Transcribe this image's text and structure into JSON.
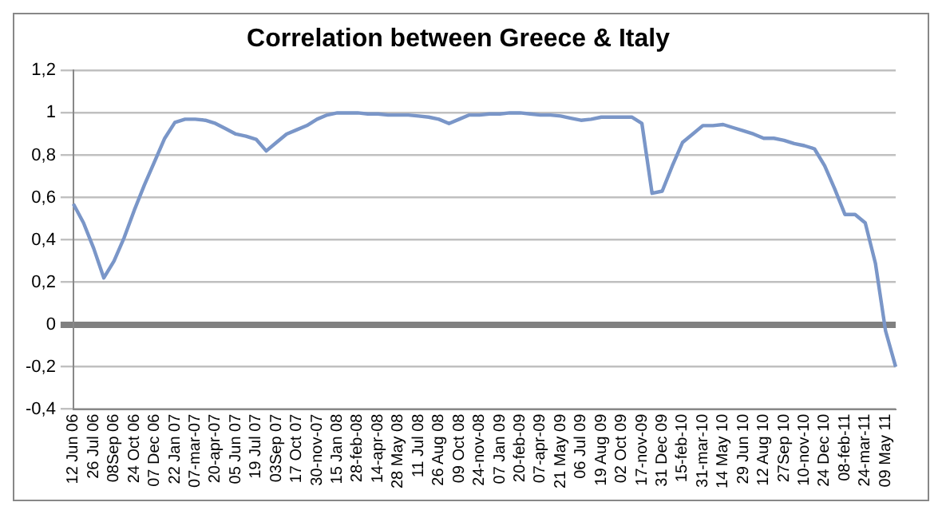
{
  "chart_data": {
    "type": "line",
    "title": "Correlation between Greece & Italy",
    "categories": [
      "12 Jun 06",
      null,
      "26 Jul 06",
      null,
      "08Sep 06",
      null,
      "24 Oct 06",
      null,
      "07 Dec 06",
      null,
      "22 Jan 07",
      null,
      "07-mar-07",
      null,
      "20-apr-07",
      null,
      "05 Jun 07",
      null,
      "19 Jul 07",
      null,
      "03Sep 07",
      null,
      "17 Oct 07",
      null,
      "30-nov-07",
      null,
      "15 Jan 08",
      null,
      "28-feb-08",
      null,
      "14-apr-08",
      null,
      "28 May 08",
      null,
      "11 Jul 08",
      null,
      "26 Aug 08",
      null,
      "09 Oct 08",
      null,
      "24-nov-08",
      null,
      "07 Jan 09",
      null,
      "20-feb-09",
      null,
      "07-apr-09",
      null,
      "21 May 09",
      null,
      "06 Jul 09",
      null,
      "19 Aug 09",
      null,
      "02 Oct 09",
      null,
      "17-nov-09",
      null,
      "31 Dec 09",
      null,
      "15-feb-10",
      null,
      "31-mar-10",
      null,
      "14 May 10",
      null,
      "29 Jun 10",
      null,
      "12 Aug 10",
      null,
      "27Sep 10",
      null,
      "10-nov-10",
      null,
      "24 Dec 10",
      null,
      "08-feb-11",
      null,
      "24-mar-11",
      null,
      "09 May 11",
      null
    ],
    "series": [
      {
        "color": "#7a96c8",
        "values": [
          0.57,
          0.48,
          0.36,
          0.22,
          0.3,
          0.41,
          0.54,
          0.66,
          0.77,
          0.88,
          0.955,
          0.97,
          0.97,
          0.965,
          0.95,
          0.925,
          0.9,
          0.89,
          0.875,
          0.82,
          0.86,
          0.9,
          0.92,
          0.94,
          0.97,
          0.99,
          1.0,
          1.0,
          1.0,
          0.995,
          0.995,
          0.99,
          0.99,
          0.99,
          0.985,
          0.98,
          0.97,
          0.95,
          0.97,
          0.99,
          0.99,
          0.995,
          0.995,
          1.0,
          1.0,
          0.995,
          0.99,
          0.99,
          0.985,
          0.975,
          0.965,
          0.97,
          0.98,
          0.98,
          0.98,
          0.98,
          0.95,
          0.62,
          0.63,
          0.75,
          0.86,
          0.9,
          0.94,
          0.94,
          0.945,
          0.93,
          0.915,
          0.9,
          0.88,
          0.88,
          0.87,
          0.855,
          0.845,
          0.83,
          0.75,
          0.64,
          0.52,
          0.52,
          0.48,
          0.29,
          -0.03,
          -0.2
        ]
      }
    ],
    "ylim": [
      -0.4,
      1.2
    ],
    "yticks": [
      {
        "value": -0.4,
        "label": "-0,4"
      },
      {
        "value": -0.2,
        "label": "-0,2"
      },
      0,
      {
        "value": 0.2,
        "label": "0,2"
      },
      {
        "value": 0.4,
        "label": "0,4"
      },
      {
        "value": 0.6,
        "label": "0,6"
      },
      {
        "value": 0.8,
        "label": "0,8"
      },
      1,
      {
        "value": 1.2,
        "label": "1,2"
      }
    ],
    "grid": "y",
    "legend": false,
    "marker": "none",
    "line_style": "solid"
  }
}
